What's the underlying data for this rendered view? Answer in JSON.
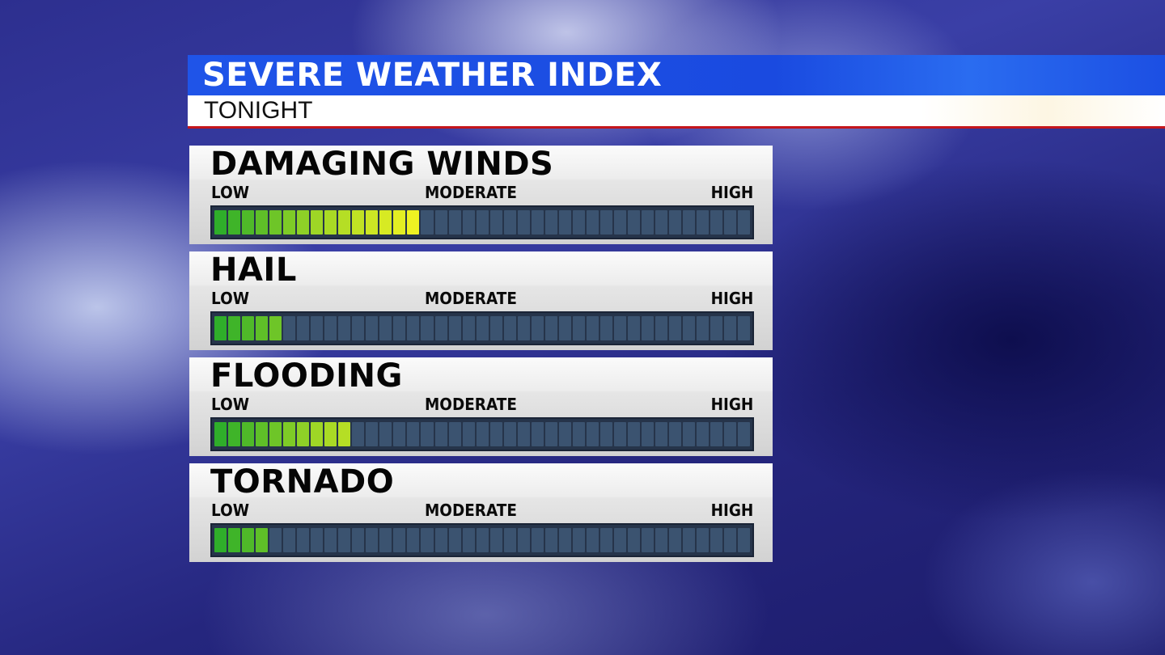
{
  "header": {
    "title": "SEVERE WEATHER INDEX",
    "subtitle": "TONIGHT"
  },
  "scale": {
    "low": "LOW",
    "moderate": "MODERATE",
    "high": "HIGH",
    "segments": 39
  },
  "colors": {
    "title_bar": "#1f54e8",
    "underline": "#c4161c",
    "meter_empty": "#3b5370",
    "meter_low": "#2fae2a",
    "meter_mid": "#9ed626",
    "meter_top": "#eef222"
  },
  "indices": [
    {
      "name": "DAMAGING WINDS",
      "filled": 15
    },
    {
      "name": "HAIL",
      "filled": 5
    },
    {
      "name": "FLOODING",
      "filled": 10
    },
    {
      "name": "TORNADO",
      "filled": 4
    }
  ]
}
